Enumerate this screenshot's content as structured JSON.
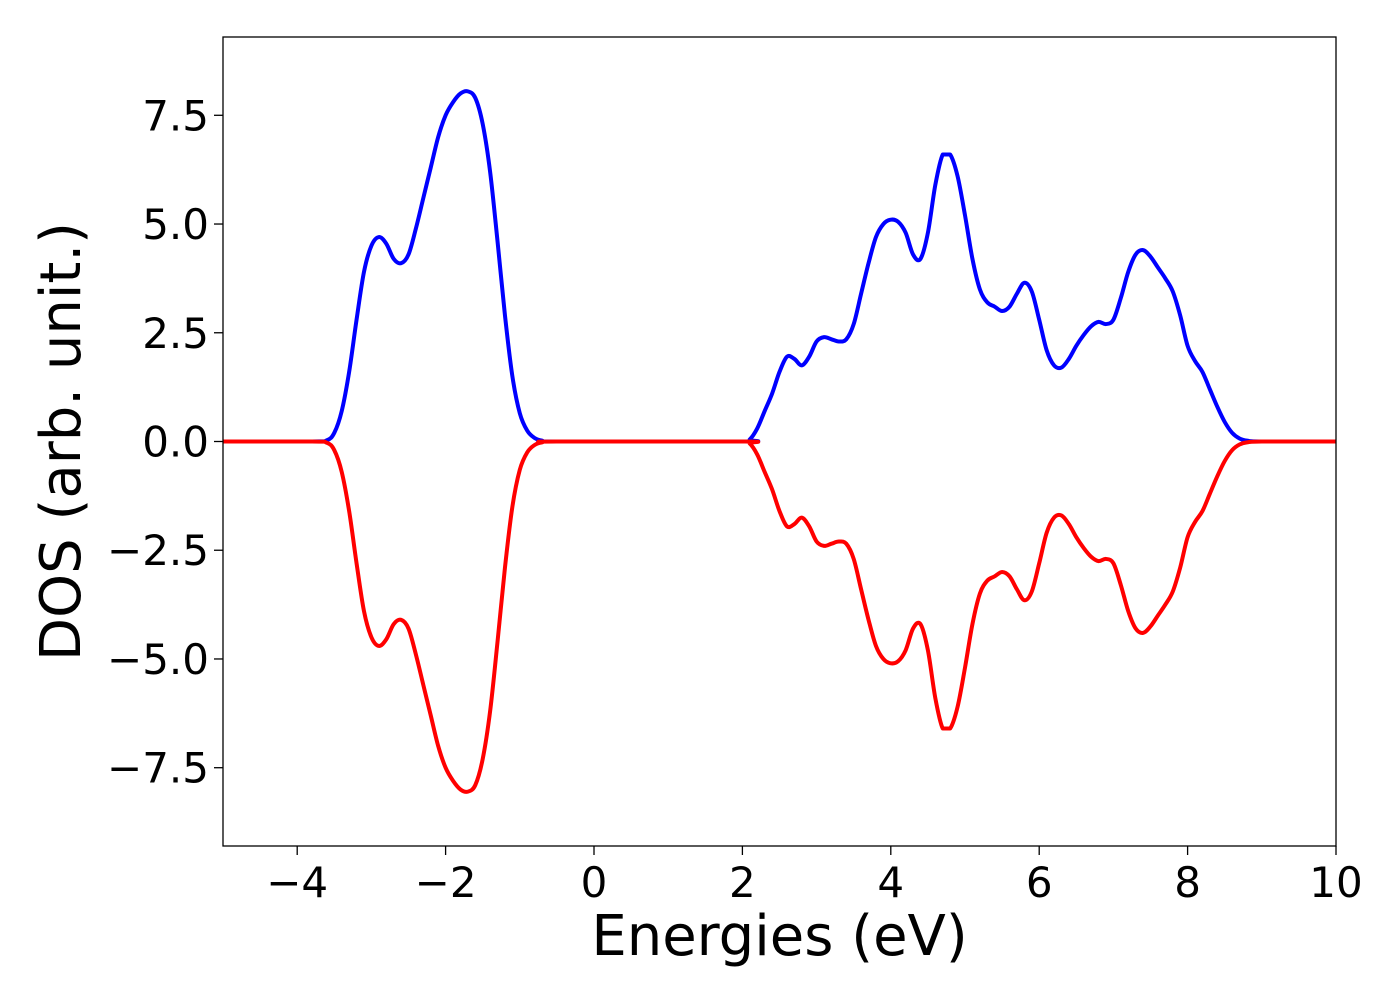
{
  "chart_data": {
    "type": "line",
    "title": "",
    "xlabel": "Energies (eV)",
    "ylabel": "DOS (arb. unit.)",
    "xlim": [
      -5,
      10
    ],
    "ylim": [
      -9.3,
      9.3
    ],
    "x_ticks": [
      -4,
      -2,
      0,
      2,
      4,
      6,
      8,
      10
    ],
    "x_tick_labels": [
      "−4",
      "−2",
      "0",
      "2",
      "4",
      "6",
      "8",
      "10"
    ],
    "y_ticks": [
      -7.5,
      -5.0,
      -2.5,
      0.0,
      2.5,
      5.0,
      7.5
    ],
    "y_tick_labels": [
      "−7.5",
      "−5.0",
      "−2.5",
      "0.0",
      "2.5",
      "5.0",
      "7.5"
    ],
    "grid": false,
    "legend": "none",
    "series": [
      {
        "color": "#0000ff",
        "points": [
          [
            -5.0,
            0.0
          ],
          [
            -3.8,
            0.0
          ],
          [
            -3.6,
            0.03
          ],
          [
            -3.5,
            0.2
          ],
          [
            -3.4,
            0.7
          ],
          [
            -3.3,
            1.6
          ],
          [
            -3.2,
            2.8
          ],
          [
            -3.1,
            3.9
          ],
          [
            -3.0,
            4.5
          ],
          [
            -2.9,
            4.7
          ],
          [
            -2.8,
            4.55
          ],
          [
            -2.7,
            4.2
          ],
          [
            -2.6,
            4.1
          ],
          [
            -2.5,
            4.3
          ],
          [
            -2.4,
            4.9
          ],
          [
            -2.3,
            5.6
          ],
          [
            -2.2,
            6.3
          ],
          [
            -2.1,
            7.0
          ],
          [
            -2.0,
            7.5
          ],
          [
            -1.9,
            7.8
          ],
          [
            -1.8,
            8.0
          ],
          [
            -1.7,
            8.05
          ],
          [
            -1.6,
            7.9
          ],
          [
            -1.5,
            7.3
          ],
          [
            -1.4,
            6.2
          ],
          [
            -1.3,
            4.6
          ],
          [
            -1.2,
            2.9
          ],
          [
            -1.1,
            1.5
          ],
          [
            -1.0,
            0.65
          ],
          [
            -0.9,
            0.25
          ],
          [
            -0.8,
            0.08
          ],
          [
            -0.7,
            0.02
          ],
          [
            -0.5,
            0.0
          ],
          [
            2.0,
            0.0
          ],
          [
            2.1,
            0.05
          ],
          [
            2.2,
            0.3
          ],
          [
            2.3,
            0.7
          ],
          [
            2.4,
            1.1
          ],
          [
            2.5,
            1.6
          ],
          [
            2.6,
            1.95
          ],
          [
            2.7,
            1.9
          ],
          [
            2.8,
            1.75
          ],
          [
            2.9,
            1.95
          ],
          [
            3.0,
            2.3
          ],
          [
            3.1,
            2.4
          ],
          [
            3.2,
            2.35
          ],
          [
            3.3,
            2.3
          ],
          [
            3.4,
            2.35
          ],
          [
            3.5,
            2.7
          ],
          [
            3.6,
            3.4
          ],
          [
            3.7,
            4.1
          ],
          [
            3.8,
            4.7
          ],
          [
            3.9,
            5.0
          ],
          [
            4.0,
            5.1
          ],
          [
            4.1,
            5.05
          ],
          [
            4.2,
            4.8
          ],
          [
            4.3,
            4.3
          ],
          [
            4.4,
            4.2
          ],
          [
            4.5,
            4.8
          ],
          [
            4.6,
            5.9
          ],
          [
            4.7,
            6.6
          ],
          [
            4.8,
            6.6
          ],
          [
            4.9,
            6.1
          ],
          [
            5.0,
            5.2
          ],
          [
            5.1,
            4.2
          ],
          [
            5.2,
            3.5
          ],
          [
            5.3,
            3.2
          ],
          [
            5.4,
            3.1
          ],
          [
            5.5,
            3.0
          ],
          [
            5.6,
            3.1
          ],
          [
            5.7,
            3.4
          ],
          [
            5.8,
            3.65
          ],
          [
            5.9,
            3.45
          ],
          [
            6.0,
            2.8
          ],
          [
            6.1,
            2.1
          ],
          [
            6.2,
            1.75
          ],
          [
            6.3,
            1.7
          ],
          [
            6.4,
            1.9
          ],
          [
            6.5,
            2.2
          ],
          [
            6.6,
            2.45
          ],
          [
            6.7,
            2.65
          ],
          [
            6.8,
            2.75
          ],
          [
            6.9,
            2.7
          ],
          [
            7.0,
            2.8
          ],
          [
            7.1,
            3.3
          ],
          [
            7.2,
            3.9
          ],
          [
            7.3,
            4.3
          ],
          [
            7.4,
            4.4
          ],
          [
            7.5,
            4.25
          ],
          [
            7.6,
            4.0
          ],
          [
            7.7,
            3.75
          ],
          [
            7.8,
            3.45
          ],
          [
            7.9,
            2.9
          ],
          [
            8.0,
            2.2
          ],
          [
            8.1,
            1.85
          ],
          [
            8.2,
            1.6
          ],
          [
            8.3,
            1.2
          ],
          [
            8.4,
            0.8
          ],
          [
            8.5,
            0.45
          ],
          [
            8.6,
            0.2
          ],
          [
            8.7,
            0.07
          ],
          [
            8.8,
            0.02
          ],
          [
            9.0,
            0.0
          ],
          [
            10.0,
            0.0
          ]
        ]
      },
      {
        "color": "#ff0000",
        "points": [
          [
            -5.0,
            0.0
          ],
          [
            -3.8,
            0.0
          ],
          [
            -3.6,
            -0.03
          ],
          [
            -3.5,
            -0.2
          ],
          [
            -3.4,
            -0.7
          ],
          [
            -3.3,
            -1.6
          ],
          [
            -3.2,
            -2.8
          ],
          [
            -3.1,
            -3.9
          ],
          [
            -3.0,
            -4.5
          ],
          [
            -2.9,
            -4.7
          ],
          [
            -2.8,
            -4.55
          ],
          [
            -2.7,
            -4.2
          ],
          [
            -2.6,
            -4.1
          ],
          [
            -2.5,
            -4.3
          ],
          [
            -2.4,
            -4.9
          ],
          [
            -2.3,
            -5.6
          ],
          [
            -2.2,
            -6.3
          ],
          [
            -2.1,
            -7.0
          ],
          [
            -2.0,
            -7.5
          ],
          [
            -1.9,
            -7.8
          ],
          [
            -1.8,
            -8.0
          ],
          [
            -1.7,
            -8.05
          ],
          [
            -1.6,
            -7.9
          ],
          [
            -1.5,
            -7.3
          ],
          [
            -1.4,
            -6.2
          ],
          [
            -1.3,
            -4.6
          ],
          [
            -1.2,
            -2.9
          ],
          [
            -1.1,
            -1.5
          ],
          [
            -1.0,
            -0.65
          ],
          [
            -0.9,
            -0.25
          ],
          [
            -0.8,
            -0.08
          ],
          [
            -0.7,
            -0.02
          ],
          [
            -0.5,
            0.0
          ],
          [
            2.0,
            0.0
          ],
          [
            2.1,
            -0.05
          ],
          [
            2.2,
            -0.3
          ],
          [
            2.3,
            -0.7
          ],
          [
            2.4,
            -1.1
          ],
          [
            2.5,
            -1.6
          ],
          [
            2.6,
            -1.95
          ],
          [
            2.7,
            -1.9
          ],
          [
            2.8,
            -1.75
          ],
          [
            2.9,
            -1.95
          ],
          [
            3.0,
            -2.3
          ],
          [
            3.1,
            -2.4
          ],
          [
            3.2,
            -2.35
          ],
          [
            3.3,
            -2.3
          ],
          [
            3.4,
            -2.35
          ],
          [
            3.5,
            -2.7
          ],
          [
            3.6,
            -3.4
          ],
          [
            3.7,
            -4.1
          ],
          [
            3.8,
            -4.7
          ],
          [
            3.9,
            -5.0
          ],
          [
            4.0,
            -5.1
          ],
          [
            4.1,
            -5.05
          ],
          [
            4.2,
            -4.8
          ],
          [
            4.3,
            -4.3
          ],
          [
            4.4,
            -4.2
          ],
          [
            4.5,
            -4.8
          ],
          [
            4.6,
            -5.9
          ],
          [
            4.7,
            -6.6
          ],
          [
            4.8,
            -6.6
          ],
          [
            4.9,
            -6.1
          ],
          [
            5.0,
            -5.2
          ],
          [
            5.1,
            -4.2
          ],
          [
            5.2,
            -3.5
          ],
          [
            5.3,
            -3.2
          ],
          [
            5.4,
            -3.1
          ],
          [
            5.5,
            -3.0
          ],
          [
            5.6,
            -3.1
          ],
          [
            5.7,
            -3.4
          ],
          [
            5.8,
            -3.65
          ],
          [
            5.9,
            -3.45
          ],
          [
            6.0,
            -2.8
          ],
          [
            6.1,
            -2.1
          ],
          [
            6.2,
            -1.75
          ],
          [
            6.3,
            -1.7
          ],
          [
            6.4,
            -1.9
          ],
          [
            6.5,
            -2.2
          ],
          [
            6.6,
            -2.45
          ],
          [
            6.7,
            -2.65
          ],
          [
            6.8,
            -2.75
          ],
          [
            6.9,
            -2.7
          ],
          [
            7.0,
            -2.8
          ],
          [
            7.1,
            -3.3
          ],
          [
            7.2,
            -3.9
          ],
          [
            7.3,
            -4.3
          ],
          [
            7.4,
            -4.4
          ],
          [
            7.5,
            -4.25
          ],
          [
            7.6,
            -4.0
          ],
          [
            7.7,
            -3.75
          ],
          [
            7.8,
            -3.45
          ],
          [
            7.9,
            -2.9
          ],
          [
            8.0,
            -2.2
          ],
          [
            8.1,
            -1.85
          ],
          [
            8.2,
            -1.6
          ],
          [
            8.3,
            -1.2
          ],
          [
            8.4,
            -0.8
          ],
          [
            8.5,
            -0.45
          ],
          [
            8.6,
            -0.2
          ],
          [
            8.7,
            -0.07
          ],
          [
            8.8,
            -0.02
          ],
          [
            9.0,
            0.0
          ],
          [
            10.0,
            0.0
          ]
        ]
      }
    ]
  }
}
